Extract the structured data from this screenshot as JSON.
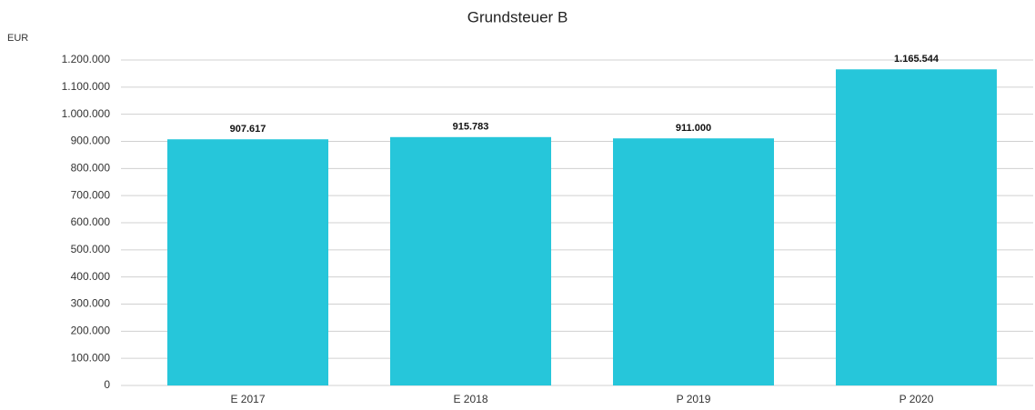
{
  "chart_data": {
    "type": "bar",
    "title": "Grundsteuer B",
    "y_label": "EUR",
    "categories": [
      "E 2017",
      "E 2018",
      "P 2019",
      "P 2020"
    ],
    "values": [
      907617,
      915783,
      911000,
      1165544
    ],
    "value_labels": [
      "907.617",
      "915.783",
      "911.000",
      "1.165.544"
    ],
    "color": "#26c6da",
    "ylim": [
      0,
      1200000
    ],
    "yticks": [
      0,
      {
        "value": 100000,
        "label": "100.000"
      },
      {
        "value": 200000,
        "label": "200.000"
      },
      {
        "value": 300000,
        "label": "300.000"
      },
      {
        "value": 400000,
        "label": "400.000"
      },
      {
        "value": 500000,
        "label": "500.000"
      },
      {
        "value": 600000,
        "label": "600.000"
      },
      {
        "value": 700000,
        "label": "700.000"
      },
      {
        "value": 800000,
        "label": "800.000"
      },
      {
        "value": 900000,
        "label": "900.000"
      },
      {
        "value": 1000000,
        "label": "1.000.000"
      },
      {
        "value": 1100000,
        "label": "1.100.000"
      },
      {
        "value": 1200000,
        "label": "1.200.000"
      }
    ],
    "grid": true
  }
}
